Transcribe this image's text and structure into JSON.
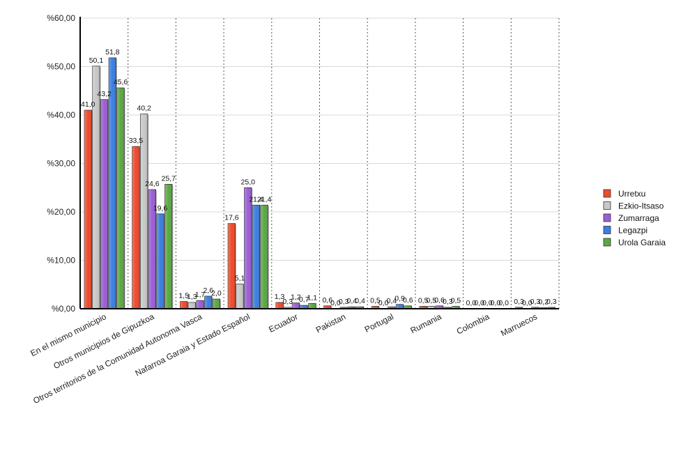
{
  "chart_data": {
    "type": "bar",
    "categories": [
      "En el mismo municipio",
      "Otros municipios de Gipuzkoa",
      "Otros territorios de la Comunidad Autonoma Vasca",
      "Nafarroa Garaia y Estado Español",
      "Ecuador",
      "Pakistan",
      "Portugal",
      "Rumania",
      "Colombia",
      "Marruecos"
    ],
    "series": [
      {
        "name": "Urretxu",
        "color": "#f04a2c",
        "values": [
          41.0,
          33.5,
          1.5,
          17.6,
          1.3,
          0.6,
          0.5,
          0.5,
          0.0,
          0.3
        ]
      },
      {
        "name": "Ezkio-Itsaso",
        "color": "#c8c8c8",
        "values": [
          50.1,
          40.2,
          1.3,
          5.1,
          0.3,
          0.0,
          0.0,
          0.5,
          0.0,
          0.0
        ]
      },
      {
        "name": "Zumarraga",
        "color": "#9b5fd6",
        "values": [
          43.2,
          24.6,
          1.7,
          25.0,
          1.2,
          0.3,
          0.4,
          0.6,
          0.0,
          0.3
        ]
      },
      {
        "name": "Legazpi",
        "color": "#3c7fe0",
        "values": [
          51.8,
          19.6,
          2.6,
          21.4,
          0.7,
          0.4,
          0.9,
          0.3,
          0.0,
          0.2
        ]
      },
      {
        "name": "Urola Garaia",
        "color": "#5aa845",
        "values": [
          45.6,
          25.7,
          2.0,
          21.4,
          1.1,
          0.4,
          0.6,
          0.5,
          0.0,
          0.3
        ]
      }
    ],
    "y_tick_labels": [
      "%0,00",
      "%10,00",
      "%20,00",
      "%30,00",
      "%40,00",
      "%50,00",
      "%60,00"
    ],
    "ylim": [
      0,
      60
    ],
    "y_step": 10,
    "grid": true,
    "legend_position": "right",
    "title": "",
    "xlabel": "",
    "ylabel": ""
  }
}
